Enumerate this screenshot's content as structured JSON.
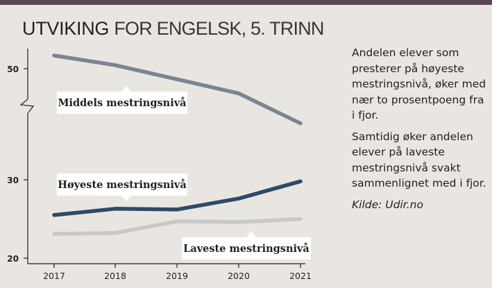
{
  "header": {
    "title_bold": "UTVIKING",
    "title_light": "FOR ENGELSK, 5. TRINN"
  },
  "side_text": {
    "paragraph1": "Andelen elever som presterer på høyeste mestringsnivå, øker med nær to prosentpoeng fra i fjor.",
    "paragraph2": "Samtidig øker andelen elever på laveste mestringsnivå svakt sammenlignet med i fjor.",
    "source": "Kilde: Udir.no"
  },
  "colors": {
    "background": "#e9e5e1",
    "topbar": "#5a4656",
    "middels": "#7a8494",
    "hoyeste": "#2d4a68",
    "laveste": "#c8c8c8"
  },
  "chart_data": {
    "type": "line",
    "x": [
      2017,
      2018,
      2019,
      2020,
      2021
    ],
    "y_ticks": [
      20,
      30,
      50
    ],
    "y_axis_break": true,
    "series": [
      {
        "name": "Middels mestringsnivå",
        "values": [
          51.5,
          50.4,
          48.8,
          47.2,
          43.8
        ],
        "color": "#7a8494"
      },
      {
        "name": "Høyeste mestringsnivå",
        "values": [
          25.5,
          26.3,
          26.2,
          27.6,
          29.8
        ],
        "color": "#2d4a68"
      },
      {
        "name": "Laveste mestringsnivå",
        "values": [
          23.1,
          23.2,
          24.7,
          24.6,
          25.0
        ],
        "color": "#c8c8c8"
      }
    ]
  }
}
